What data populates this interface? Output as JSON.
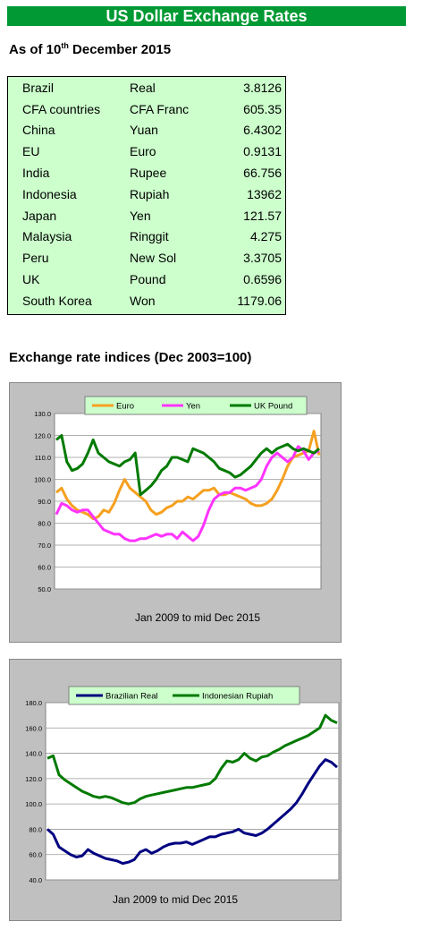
{
  "page_title": "US Dollar Exchange Rates",
  "as_of": {
    "prefix": "As of 10",
    "sup": "th",
    "suffix": " December 2015"
  },
  "rates": [
    {
      "country": "Brazil",
      "currency": "Real",
      "rate": "3.8126"
    },
    {
      "country": "CFA countries",
      "currency": "CFA Franc",
      "rate": "605.35"
    },
    {
      "country": "China",
      "currency": "Yuan",
      "rate": "6.4302"
    },
    {
      "country": "EU",
      "currency": "Euro",
      "rate": "0.9131"
    },
    {
      "country": "India",
      "currency": "Rupee",
      "rate": "66.756"
    },
    {
      "country": "Indonesia",
      "currency": "Rupiah",
      "rate": "13962"
    },
    {
      "country": "Japan",
      "currency": "Yen",
      "rate": "121.57"
    },
    {
      "country": "Malaysia",
      "currency": "Ringgit",
      "rate": "4.275"
    },
    {
      "country": "Peru",
      "currency": "New Sol",
      "rate": "3.3705"
    },
    {
      "country": "UK",
      "currency": "Pound",
      "rate": "0.6596"
    },
    {
      "country": "South Korea",
      "currency": "Won",
      "rate": "1179.06"
    }
  ],
  "indices_title": "Exchange rate indices (Dec 2003=100)",
  "chart_data": [
    {
      "type": "line",
      "title": "",
      "xlabel": "Jan 2009 to mid Dec 2015",
      "ylabel": "",
      "ylim": [
        50,
        130
      ],
      "yticks": [
        "130.0",
        "120.0",
        "110.0",
        "100.0",
        "90.0",
        "80.0",
        "70.0",
        "60.0",
        "50.0"
      ],
      "grid": true,
      "legend": "top",
      "series": [
        {
          "name": "Euro",
          "color": "#f5a020",
          "values": [
            94,
            96,
            91,
            88,
            86,
            85,
            84,
            82,
            83,
            86,
            85,
            89,
            95,
            100,
            96,
            94,
            92,
            90,
            86,
            84,
            85,
            87,
            88,
            90,
            90,
            92,
            91,
            93,
            95,
            95,
            96,
            93,
            93,
            94,
            93,
            92,
            91,
            89,
            88,
            88,
            89,
            91,
            95,
            100,
            106,
            110,
            111,
            112,
            113,
            122,
            111
          ]
        },
        {
          "name": "Yen",
          "color": "#ff33ff",
          "values": [
            84,
            89,
            88,
            86,
            85,
            86,
            86,
            83,
            80,
            77,
            76,
            75,
            75,
            73,
            72,
            72,
            73,
            73,
            74,
            75,
            74,
            75,
            75,
            73,
            76,
            74,
            72,
            74,
            79,
            86,
            91,
            93,
            94,
            94,
            96,
            96,
            95,
            96,
            97,
            100,
            106,
            110,
            112,
            110,
            108,
            110,
            115,
            113,
            109,
            112,
            113
          ]
        },
        {
          "name": "UK Pound",
          "color": "#007a00",
          "values": [
            118,
            120,
            108,
            104,
            105,
            107,
            112,
            118,
            112,
            110,
            108,
            107,
            106,
            108,
            109,
            112,
            93,
            95,
            97,
            100,
            104,
            106,
            110,
            110,
            109,
            108,
            114,
            113,
            112,
            110,
            108,
            105,
            104,
            103,
            101,
            102,
            104,
            106,
            109,
            112,
            114,
            112,
            114,
            115,
            116,
            114,
            113,
            114,
            113,
            112,
            114
          ]
        }
      ]
    },
    {
      "type": "line",
      "title": "",
      "xlabel": "Jan 2009 to mid Dec 2015",
      "ylabel": "",
      "ylim": [
        40,
        180
      ],
      "yticks": [
        "180.0",
        "160.0",
        "140.0",
        "120.0",
        "100.0",
        "80.0",
        "60.0",
        "40.0"
      ],
      "grid": true,
      "legend": "top",
      "series": [
        {
          "name": "Brazilian Real",
          "color": "#000080",
          "values": [
            80,
            76,
            66,
            63,
            60,
            58,
            59,
            64,
            61,
            59,
            57,
            56,
            55,
            53,
            54,
            56,
            62,
            64,
            61,
            63,
            66,
            68,
            69,
            69,
            70,
            68,
            70,
            72,
            74,
            74,
            76,
            77,
            78,
            80,
            77,
            76,
            75,
            77,
            80,
            84,
            88,
            92,
            96,
            101,
            108,
            116,
            123,
            130,
            135,
            133,
            129
          ]
        },
        {
          "name": "Indonesian Rupiah",
          "color": "#007a00",
          "values": [
            136,
            138,
            123,
            119,
            116,
            113,
            110,
            108,
            106,
            105,
            106,
            105,
            103,
            101,
            100,
            101,
            104,
            106,
            107,
            108,
            109,
            110,
            111,
            112,
            113,
            113,
            114,
            115,
            116,
            120,
            128,
            134,
            133,
            135,
            140,
            136,
            134,
            137,
            138,
            141,
            143,
            146,
            148,
            150,
            152,
            154,
            157,
            160,
            170,
            166,
            164
          ]
        }
      ]
    }
  ]
}
